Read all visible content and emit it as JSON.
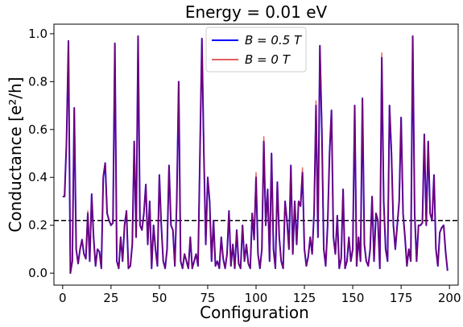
{
  "chart_data": {
    "type": "line",
    "title": "Energy = 0.01 eV",
    "xlabel": "Configuration",
    "ylabel": "Conductance [e²/h]",
    "xlim": [
      -4.5,
      204.5
    ],
    "ylim": [
      -0.05,
      1.04
    ],
    "xticks": [
      0,
      25,
      50,
      75,
      100,
      125,
      150,
      175,
      200
    ],
    "yticks": [
      0.0,
      0.2,
      0.4,
      0.6,
      0.8,
      1.0
    ],
    "xtick_labels": [
      "0",
      "25",
      "50",
      "75",
      "100",
      "125",
      "150",
      "175",
      "200"
    ],
    "ytick_labels": [
      "0.0",
      "0.2",
      "0.4",
      "0.6",
      "0.8",
      "1.0"
    ],
    "reference_line": {
      "y": 0.22,
      "style": "dashed",
      "color": "#000000"
    },
    "legend": {
      "placement": "top-center",
      "entries": [
        {
          "label": "B = 0.5 T",
          "color": "#0000ff"
        },
        {
          "label": "B = 0 T",
          "color": "#d40000"
        }
      ]
    },
    "series": [
      {
        "name": "B = 0.5 T",
        "color": "#0000ff",
        "x": [
          0,
          1,
          2,
          3,
          4,
          5,
          6,
          7,
          8,
          9,
          10,
          11,
          12,
          13,
          14,
          15,
          16,
          17,
          18,
          19,
          20,
          21,
          22,
          23,
          24,
          25,
          26,
          27,
          28,
          29,
          30,
          31,
          32,
          33,
          34,
          35,
          36,
          37,
          38,
          39,
          40,
          41,
          42,
          43,
          44,
          45,
          46,
          47,
          48,
          49,
          50,
          51,
          52,
          53,
          54,
          55,
          56,
          57,
          58,
          59,
          60,
          61,
          62,
          63,
          64,
          65,
          66,
          67,
          68,
          69,
          70,
          71,
          72,
          73,
          74,
          75,
          76,
          77,
          78,
          79,
          80,
          81,
          82,
          83,
          84,
          85,
          86,
          87,
          88,
          89,
          90,
          91,
          92,
          93,
          94,
          95,
          96,
          97,
          98,
          99,
          100,
          101,
          102,
          103,
          104,
          105,
          106,
          107,
          108,
          109,
          110,
          111,
          112,
          113,
          114,
          115,
          116,
          117,
          118,
          119,
          120,
          121,
          122,
          123,
          124,
          125,
          126,
          127,
          128,
          129,
          130,
          131,
          132,
          133,
          134,
          135,
          136,
          137,
          138,
          139,
          140,
          141,
          142,
          143,
          144,
          145,
          146,
          147,
          148,
          149,
          150,
          151,
          152,
          153,
          154,
          155,
          156,
          157,
          158,
          159,
          160,
          161,
          162,
          163,
          164,
          165,
          166,
          167,
          168,
          169,
          170,
          171,
          172,
          173,
          174,
          175,
          176,
          177,
          178,
          179,
          180,
          181,
          182,
          183,
          184,
          185,
          186,
          187,
          188,
          189,
          190,
          191,
          192,
          193,
          194,
          195,
          196,
          197,
          198,
          199
        ],
        "y": [
          0.32,
          0.32,
          0.55,
          0.97,
          0.0,
          0.05,
          0.69,
          0.1,
          0.04,
          0.1,
          0.14,
          0.08,
          0.06,
          0.25,
          0.05,
          0.33,
          0.15,
          0.03,
          0.1,
          0.09,
          0.02,
          0.4,
          0.46,
          0.25,
          0.22,
          0.2,
          0.21,
          0.96,
          0.05,
          0.02,
          0.15,
          0.05,
          0.2,
          0.26,
          0.02,
          0.03,
          0.12,
          0.55,
          0.15,
          0.99,
          0.2,
          0.18,
          0.25,
          0.37,
          0.12,
          0.3,
          0.02,
          0.2,
          0.1,
          0.03,
          0.41,
          0.2,
          0.05,
          0.02,
          0.1,
          0.45,
          0.2,
          0.18,
          0.03,
          0.3,
          0.8,
          0.05,
          0.02,
          0.08,
          0.05,
          0.02,
          0.15,
          0.02,
          0.05,
          0.08,
          0.03,
          0.5,
          0.98,
          0.5,
          0.12,
          0.4,
          0.3,
          0.05,
          0.22,
          0.03,
          0.05,
          0.02,
          0.15,
          0.06,
          0.02,
          0.08,
          0.26,
          0.03,
          0.12,
          0.02,
          0.18,
          0.04,
          0.02,
          0.2,
          0.05,
          0.12,
          0.04,
          0.02,
          0.25,
          0.14,
          0.4,
          0.08,
          0.02,
          0.1,
          0.55,
          0.2,
          0.35,
          0.05,
          0.5,
          0.1,
          0.02,
          0.38,
          0.15,
          0.05,
          0.02,
          0.3,
          0.22,
          0.1,
          0.45,
          0.08,
          0.3,
          0.12,
          0.3,
          0.28,
          0.42,
          0.1,
          0.03,
          0.07,
          0.15,
          0.08,
          0.25,
          0.7,
          0.15,
          0.95,
          0.6,
          0.1,
          0.03,
          0.2,
          0.5,
          0.68,
          0.15,
          0.08,
          0.24,
          0.02,
          0.06,
          0.35,
          0.02,
          0.05,
          0.15,
          0.05,
          0.1,
          0.7,
          0.03,
          0.15,
          0.05,
          0.73,
          0.12,
          0.05,
          0.03,
          0.1,
          0.32,
          0.05,
          0.25,
          0.22,
          0.02,
          0.9,
          0.3,
          0.1,
          0.05,
          0.7,
          0.5,
          0.2,
          0.1,
          0.2,
          0.3,
          0.65,
          0.25,
          0.15,
          0.03,
          0.1,
          0.05,
          0.99,
          0.25,
          0.05,
          0.2,
          0.2,
          0.21,
          0.58,
          0.2,
          0.55,
          0.25,
          0.22,
          0.41,
          0.1,
          0.03,
          0.17,
          0.19,
          0.2,
          0.09,
          0.01
        ]
      },
      {
        "name": "B = 0 T",
        "color": "#d40000",
        "x": [
          0,
          1,
          2,
          3,
          4,
          5,
          6,
          7,
          8,
          9,
          10,
          11,
          12,
          13,
          14,
          15,
          16,
          17,
          18,
          19,
          20,
          21,
          22,
          23,
          24,
          25,
          26,
          27,
          28,
          29,
          30,
          31,
          32,
          33,
          34,
          35,
          36,
          37,
          38,
          39,
          40,
          41,
          42,
          43,
          44,
          45,
          46,
          47,
          48,
          49,
          50,
          51,
          52,
          53,
          54,
          55,
          56,
          57,
          58,
          59,
          60,
          61,
          62,
          63,
          64,
          65,
          66,
          67,
          68,
          69,
          70,
          71,
          72,
          73,
          74,
          75,
          76,
          77,
          78,
          79,
          80,
          81,
          82,
          83,
          84,
          85,
          86,
          87,
          88,
          89,
          90,
          91,
          92,
          93,
          94,
          95,
          96,
          97,
          98,
          99,
          100,
          101,
          102,
          103,
          104,
          105,
          106,
          107,
          108,
          109,
          110,
          111,
          112,
          113,
          114,
          115,
          116,
          117,
          118,
          119,
          120,
          121,
          122,
          123,
          124,
          125,
          126,
          127,
          128,
          129,
          130,
          131,
          132,
          133,
          134,
          135,
          136,
          137,
          138,
          139,
          140,
          141,
          142,
          143,
          144,
          145,
          146,
          147,
          148,
          149,
          150,
          151,
          152,
          153,
          154,
          155,
          156,
          157,
          158,
          159,
          160,
          161,
          162,
          163,
          164,
          165,
          166,
          167,
          168,
          169,
          170,
          171,
          172,
          173,
          174,
          175,
          176,
          177,
          178,
          179,
          180,
          181,
          182,
          183,
          184,
          185,
          186,
          187,
          188,
          189,
          190,
          191,
          192,
          193,
          194,
          195,
          196,
          197,
          198,
          199
        ],
        "y": [
          0.32,
          0.32,
          0.55,
          0.97,
          0.0,
          0.05,
          0.69,
          0.1,
          0.04,
          0.1,
          0.14,
          0.08,
          0.06,
          0.26,
          0.05,
          0.33,
          0.15,
          0.03,
          0.1,
          0.09,
          0.02,
          0.41,
          0.46,
          0.25,
          0.22,
          0.2,
          0.21,
          0.96,
          0.05,
          0.02,
          0.15,
          0.05,
          0.2,
          0.26,
          0.02,
          0.03,
          0.12,
          0.55,
          0.15,
          0.99,
          0.2,
          0.18,
          0.25,
          0.37,
          0.12,
          0.3,
          0.02,
          0.2,
          0.1,
          0.03,
          0.41,
          0.2,
          0.05,
          0.02,
          0.1,
          0.45,
          0.2,
          0.18,
          0.03,
          0.3,
          0.8,
          0.05,
          0.02,
          0.08,
          0.05,
          0.02,
          0.15,
          0.02,
          0.05,
          0.08,
          0.03,
          0.5,
          0.98,
          0.52,
          0.12,
          0.4,
          0.3,
          0.05,
          0.22,
          0.03,
          0.05,
          0.02,
          0.15,
          0.06,
          0.02,
          0.08,
          0.26,
          0.03,
          0.12,
          0.02,
          0.18,
          0.04,
          0.02,
          0.2,
          0.05,
          0.12,
          0.04,
          0.02,
          0.25,
          0.14,
          0.42,
          0.08,
          0.02,
          0.1,
          0.57,
          0.2,
          0.35,
          0.05,
          0.5,
          0.1,
          0.02,
          0.38,
          0.15,
          0.05,
          0.02,
          0.3,
          0.22,
          0.1,
          0.45,
          0.08,
          0.3,
          0.12,
          0.3,
          0.28,
          0.44,
          0.1,
          0.03,
          0.07,
          0.15,
          0.08,
          0.25,
          0.72,
          0.15,
          0.95,
          0.62,
          0.1,
          0.03,
          0.2,
          0.5,
          0.68,
          0.15,
          0.08,
          0.24,
          0.02,
          0.06,
          0.35,
          0.02,
          0.05,
          0.15,
          0.05,
          0.1,
          0.7,
          0.03,
          0.15,
          0.05,
          0.73,
          0.12,
          0.05,
          0.03,
          0.1,
          0.32,
          0.05,
          0.25,
          0.22,
          0.02,
          0.92,
          0.3,
          0.1,
          0.05,
          0.7,
          0.52,
          0.2,
          0.1,
          0.2,
          0.3,
          0.65,
          0.25,
          0.15,
          0.03,
          0.1,
          0.05,
          0.99,
          0.25,
          0.05,
          0.2,
          0.2,
          0.21,
          0.58,
          0.2,
          0.55,
          0.25,
          0.22,
          0.41,
          0.1,
          0.03,
          0.17,
          0.19,
          0.2,
          0.09,
          0.01
        ]
      }
    ]
  }
}
